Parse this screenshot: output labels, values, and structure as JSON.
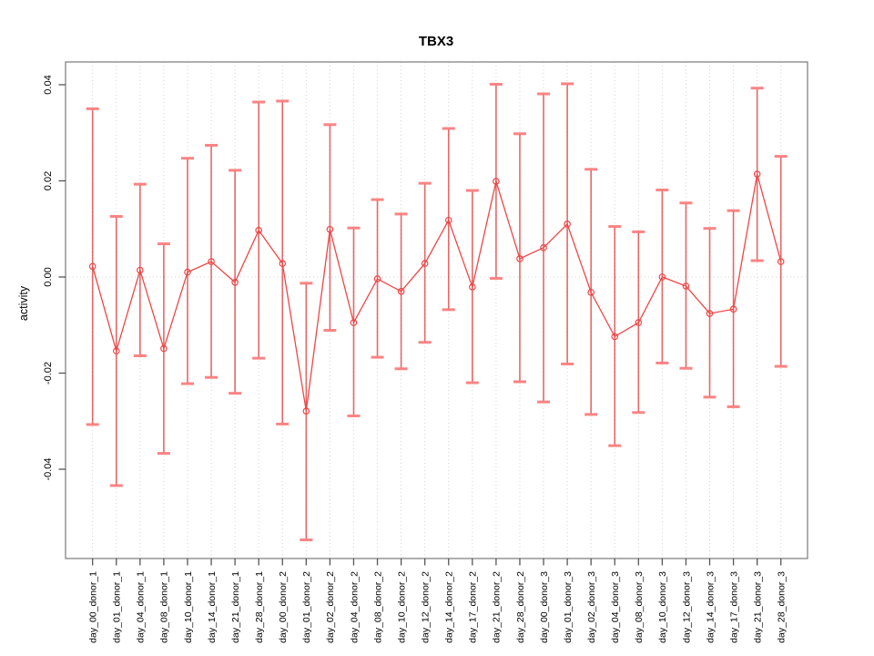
{
  "page": {
    "background": "#ffffff"
  },
  "chart_data": {
    "type": "line",
    "title": "TBX3",
    "xlabel": "",
    "ylabel": "activity",
    "legend": {
      "visible": false
    },
    "marker": "open-circle",
    "error_bars": true,
    "ylim": [
      -0.0587,
      0.0445
    ],
    "y_ticks": [
      0.04,
      0.02,
      0,
      -0.02,
      -0.04
    ],
    "y_tick_labels": [
      "0.04",
      "0.02",
      "0.00",
      "-0.02",
      "-0.04"
    ],
    "grid": {
      "vertical": "dotted line at every category",
      "horizontal": "dotted line at zero only"
    },
    "x_tick_label_rotation_deg": 90,
    "y_tick_label_rotation_deg": 90,
    "categories": [
      "day_00_donor_1",
      "day_01_donor_1",
      "day_04_donor_1",
      "day_08_donor_1",
      "day_10_donor_1",
      "day_14_donor_1",
      "day_21_donor_1",
      "day_28_donor_1",
      "day_00_donor_2",
      "day_01_donor_2",
      "day_02_donor_2",
      "day_04_donor_2",
      "day_08_donor_2",
      "day_10_donor_2",
      "day_12_donor_2",
      "day_14_donor_2",
      "day_17_donor_2",
      "day_21_donor_2",
      "day_28_donor_2",
      "day_00_donor_3",
      "day_01_donor_3",
      "day_02_donor_3",
      "day_04_donor_3",
      "day_08_donor_3",
      "day_10_donor_3",
      "day_12_donor_3",
      "day_14_donor_3",
      "day_17_donor_3",
      "day_21_donor_3",
      "day_28_donor_3"
    ],
    "series": [
      {
        "name": "TBX3 activity",
        "values": [
          0.0022,
          -0.0154,
          0.0014,
          -0.0149,
          0.001,
          0.0032,
          -0.0011,
          0.0097,
          0.0028,
          -0.0279,
          0.0099,
          -0.0095,
          -0.0004,
          -0.003,
          0.0028,
          0.0118,
          -0.0021,
          0.0199,
          0.0038,
          0.0061,
          0.011,
          -0.0032,
          -0.0124,
          -0.0095,
          0.0,
          -0.0019,
          -0.0076,
          -0.0067,
          0.0214,
          0.0032
        ],
        "upper": [
          0.035,
          0.0126,
          0.0193,
          0.0069,
          0.0247,
          0.0274,
          0.0222,
          0.0364,
          0.0366,
          -0.0013,
          0.0317,
          0.0102,
          0.0161,
          0.0131,
          0.0195,
          0.0309,
          0.018,
          0.0401,
          0.0298,
          0.0381,
          0.0402,
          0.0224,
          0.0105,
          0.0094,
          0.0181,
          0.0154,
          0.0101,
          0.0138,
          0.0393,
          0.0251
        ],
        "lower": [
          -0.0307,
          -0.0434,
          -0.0164,
          -0.0367,
          -0.0222,
          -0.0209,
          -0.0242,
          -0.0169,
          -0.0306,
          -0.0547,
          -0.0111,
          -0.0289,
          -0.0167,
          -0.0191,
          -0.0136,
          -0.0068,
          -0.022,
          -0.0003,
          -0.0218,
          -0.026,
          -0.0181,
          -0.0286,
          -0.0351,
          -0.0282,
          -0.0179,
          -0.019,
          -0.025,
          -0.027,
          0.0034,
          -0.0186
        ]
      }
    ],
    "colors": {
      "series_line": "#ee4646",
      "error_bar": "rgba(222,48,48,0.72)",
      "error_cap": "rgba(250,125,125,0.95)",
      "gridline": "#d4d4d4",
      "frame": "#7a7a7a",
      "tick": "#555555",
      "text": "#000000",
      "background": "#ffffff"
    }
  }
}
